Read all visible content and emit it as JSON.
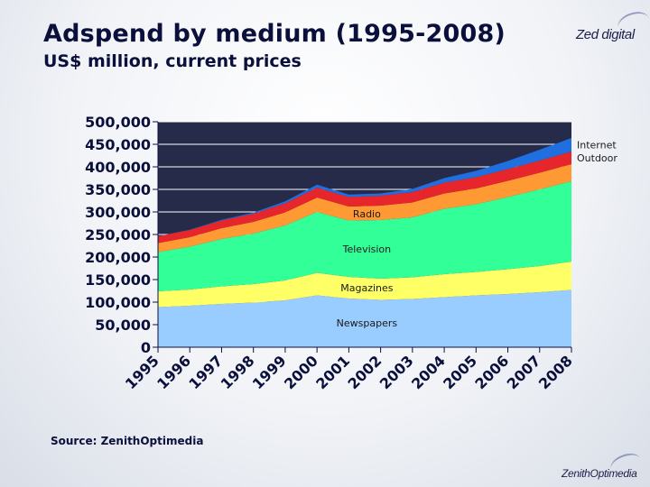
{
  "header": {
    "title": "Adspend by medium (1995-2008)",
    "subtitle": "US$ million, current prices",
    "logo_top": "Zed digital",
    "logo_bottom": "ZenithOptimedia"
  },
  "footer": {
    "source": "Source: ZenithOptimedia"
  },
  "colors": {
    "Newspapers": "#99ccff",
    "Magazines": "#ffff66",
    "Television": "#33ff99",
    "Radio": "#ff9933",
    "Outdoor": "#e6262b",
    "Internet": "#1f6fe0",
    "plot_background": "#262b4a",
    "gridline": "#ffffff"
  },
  "chart_data": {
    "type": "area",
    "stacked": true,
    "title": "Adspend by medium (1995-2008)",
    "subtitle": "US$ million, current prices",
    "xlabel": "",
    "ylabel": "",
    "ylim": [
      0,
      500000
    ],
    "yticks": [
      0,
      50000,
      100000,
      150000,
      200000,
      250000,
      300000,
      350000,
      400000,
      450000,
      500000
    ],
    "ytick_labels": [
      "0",
      "50,000",
      "100,000",
      "150,000",
      "200,000",
      "250,000",
      "300,000",
      "350,000",
      "400,000",
      "450,000",
      "500,000"
    ],
    "grid": true,
    "categories": [
      "1995",
      "1996",
      "1997",
      "1998",
      "1999",
      "2000",
      "2001",
      "2002",
      "2003",
      "2004",
      "2005",
      "2006",
      "2007",
      "2008"
    ],
    "series": [
      {
        "name": "Newspapers",
        "label": "Newspapers",
        "values": [
          89000,
          92000,
          96000,
          99000,
          104000,
          115000,
          108000,
          105000,
          107000,
          111000,
          115000,
          118000,
          122000,
          127000
        ]
      },
      {
        "name": "Magazines",
        "label": "Magazines",
        "values": [
          35000,
          36000,
          39000,
          41000,
          44000,
          50000,
          48000,
          47000,
          48000,
          51000,
          52000,
          55000,
          58000,
          63000
        ]
      },
      {
        "name": "Television",
        "label": "Television",
        "values": [
          87000,
          95000,
          105000,
          112000,
          122000,
          135000,
          125000,
          130000,
          133000,
          145000,
          150000,
          160000,
          170000,
          178000
        ]
      },
      {
        "name": "Radio",
        "label": "Radio",
        "values": [
          20000,
          21000,
          24000,
          26000,
          29000,
          32000,
          31000,
          32000,
          33000,
          34000,
          35000,
          36000,
          37000,
          38000
        ]
      },
      {
        "name": "Outdoor",
        "label": "Outdoor",
        "values": [
          15000,
          16000,
          17000,
          18000,
          20000,
          22000,
          21000,
          22000,
          23000,
          24000,
          25000,
          26000,
          27000,
          28000
        ]
      },
      {
        "name": "Internet",
        "label": "Internet",
        "values": [
          200,
          600,
          1500,
          2500,
          4500,
          6500,
          5500,
          5000,
          7000,
          10000,
          14000,
          18000,
          24000,
          30000
        ]
      }
    ]
  }
}
